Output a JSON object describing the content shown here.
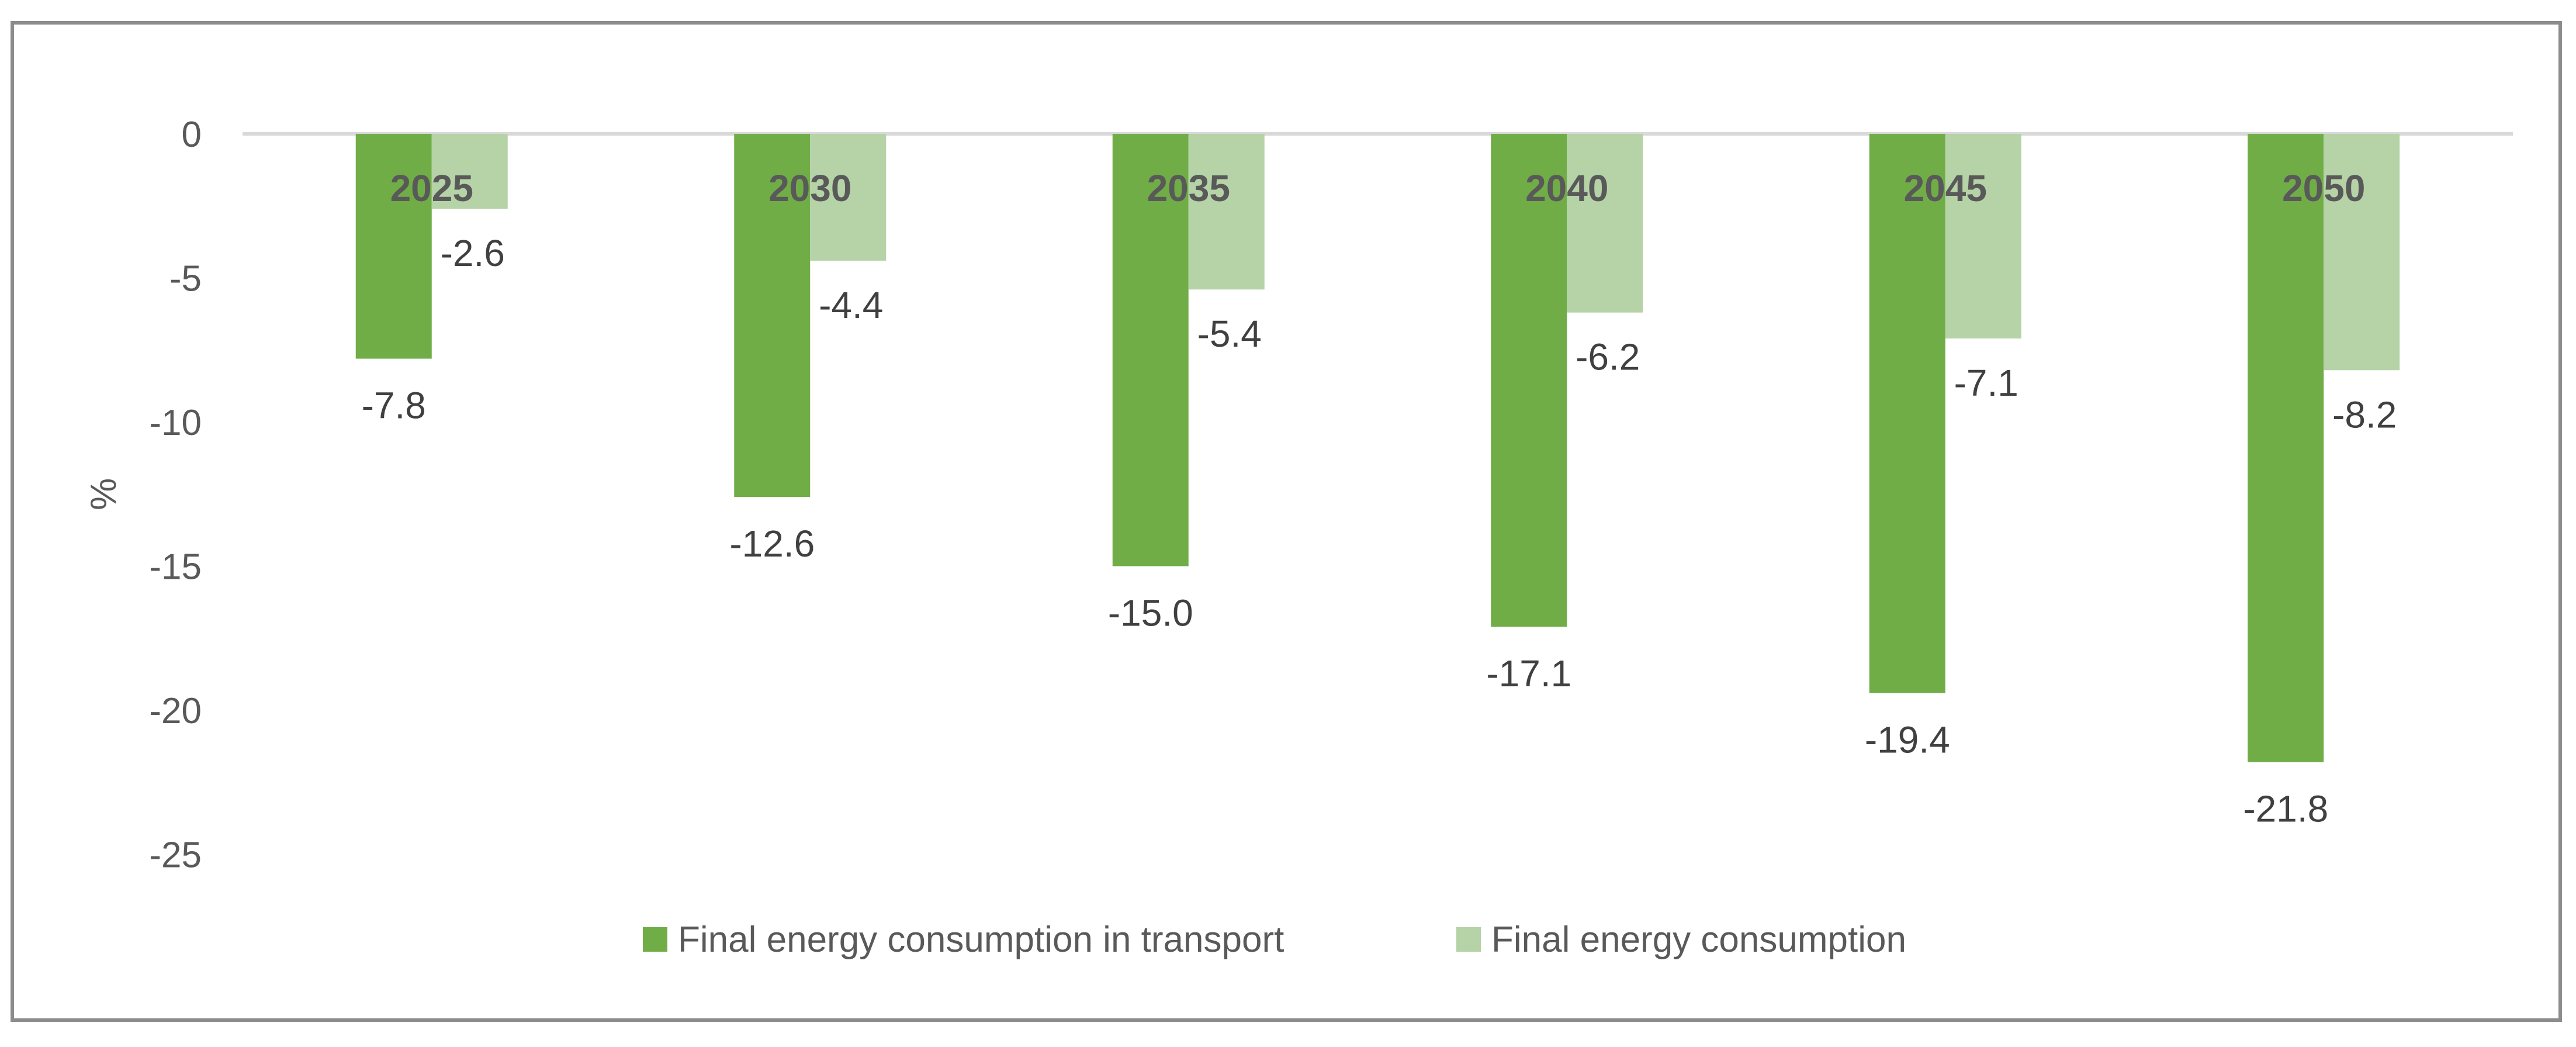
{
  "chart_data": {
    "type": "bar",
    "title": "",
    "xlabel": "",
    "ylabel": "%",
    "categories": [
      "2025",
      "2030",
      "2035",
      "2040",
      "2045",
      "2050"
    ],
    "series": [
      {
        "name": "Final energy consumption in transport",
        "color": "#70ad47",
        "values": [
          -7.8,
          -12.6,
          -15.0,
          -17.1,
          -19.4,
          -21.8
        ],
        "labels": [
          "-7.8",
          "-12.6",
          "-15.0",
          "-17.1",
          "-19.4",
          "-21.8"
        ]
      },
      {
        "name": "Final energy consumption",
        "color": "#b5d3a7",
        "values": [
          -2.6,
          -4.4,
          -5.4,
          -6.2,
          -7.1,
          -8.2
        ],
        "labels": [
          "-2.6",
          "-4.4",
          "-5.4",
          "-6.2",
          "-7.1",
          "-8.2"
        ]
      }
    ],
    "ylim": [
      -25,
      0
    ],
    "yticks": [
      0,
      -5,
      -10,
      -15,
      -20,
      -25
    ],
    "ytick_labels": [
      "0",
      "-5",
      "-10",
      "-15",
      "-20",
      "-25"
    ],
    "grid": false,
    "zero_line_color": "#d9d9d9",
    "legend_position": "bottom"
  }
}
